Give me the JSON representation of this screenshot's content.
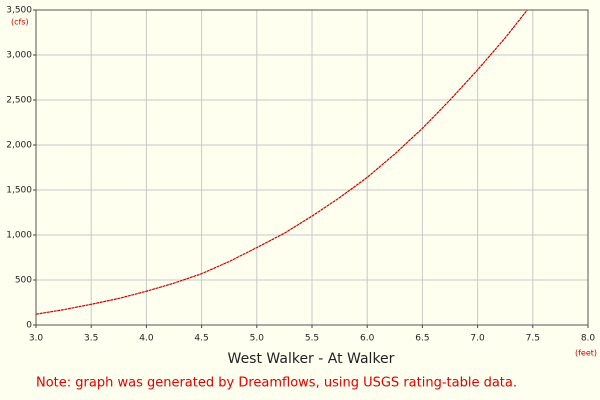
{
  "chart_data": {
    "type": "line",
    "title": "West Walker - At Walker",
    "y_unit": "(cfs)",
    "x_unit": "(feet)",
    "note": "Note: graph was generated by Dreamflows, using USGS rating-table data.",
    "x": [
      3.0,
      3.25,
      3.5,
      3.75,
      4.0,
      4.25,
      4.5,
      4.75,
      5.0,
      5.25,
      5.5,
      5.75,
      6.0,
      6.25,
      6.5,
      6.75,
      7.0,
      7.25,
      7.45
    ],
    "series": [
      {
        "name": "West Walker - At Walker",
        "color": "#cc0000",
        "values": [
          120,
          170,
          230,
          295,
          375,
          465,
          570,
          705,
          860,
          1020,
          1210,
          1415,
          1640,
          1900,
          2185,
          2500,
          2835,
          3190,
          3500
        ]
      }
    ],
    "xlim": [
      3.0,
      8.0
    ],
    "xticks": [
      {
        "value": 3.0,
        "label": "3.0"
      },
      {
        "value": 3.5,
        "label": "3.5"
      },
      {
        "value": 4.0,
        "label": "4.0"
      },
      {
        "value": 4.5,
        "label": "4.5"
      },
      {
        "value": 5.0,
        "label": "5.0"
      },
      {
        "value": 5.5,
        "label": "5.5"
      },
      {
        "value": 6.0,
        "label": "6.0"
      },
      {
        "value": 6.5,
        "label": "6.5"
      },
      {
        "value": 7.0,
        "label": "7.0"
      },
      {
        "value": 7.5,
        "label": "7.5"
      },
      {
        "value": 8.0,
        "label": "8.0"
      }
    ],
    "ylim": [
      0,
      3500
    ],
    "yticks": [
      0,
      500,
      {
        "value": 1000,
        "label": "1,000"
      },
      {
        "value": 1500,
        "label": "1,500"
      },
      {
        "value": 2000,
        "label": "2,000"
      },
      {
        "value": 2500,
        "label": "2,500"
      },
      {
        "value": 3000,
        "label": "3,000"
      },
      {
        "value": 3500,
        "label": "3,500"
      }
    ],
    "grid": true
  }
}
